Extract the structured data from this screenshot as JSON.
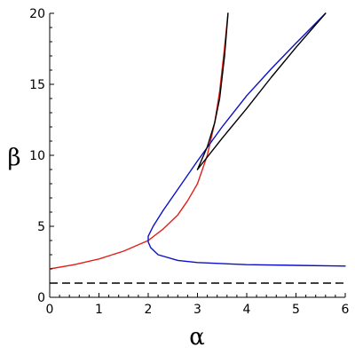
{
  "chart_data": {
    "type": "line",
    "xlabel": "α",
    "ylabel": "β",
    "xlim": [
      0,
      6
    ],
    "ylim": [
      0,
      20
    ],
    "xticks": [
      0,
      1,
      2,
      3,
      4,
      5,
      6
    ],
    "yticks": [
      0,
      5,
      10,
      15,
      20
    ],
    "grid": false,
    "series": [
      {
        "color": "#e0201b",
        "style": "solid",
        "points": [
          [
            0,
            2.0
          ],
          [
            0.5,
            2.3
          ],
          [
            1.0,
            2.7
          ],
          [
            1.5,
            3.25
          ],
          [
            2.0,
            4.0
          ],
          [
            2.3,
            4.8
          ],
          [
            2.6,
            5.8
          ],
          [
            2.8,
            6.8
          ],
          [
            3.0,
            8.0
          ],
          [
            3.2,
            10.0
          ],
          [
            3.35,
            12.3
          ],
          [
            3.45,
            14.5
          ],
          [
            3.55,
            17.6
          ],
          [
            3.62,
            20.0
          ]
        ]
      },
      {
        "color": "#0b10c8",
        "style": "solid",
        "points": [
          [
            5.6,
            20.0
          ],
          [
            5.0,
            17.9
          ],
          [
            4.5,
            16.1
          ],
          [
            4.0,
            14.2
          ],
          [
            3.5,
            12.0
          ],
          [
            3.0,
            9.6
          ],
          [
            2.6,
            7.6
          ],
          [
            2.3,
            6.1
          ],
          [
            2.1,
            5.0
          ],
          [
            2.0,
            4.3
          ],
          [
            2.0,
            3.9
          ],
          [
            2.05,
            3.5
          ],
          [
            2.2,
            3.0
          ],
          [
            2.6,
            2.6
          ],
          [
            3.0,
            2.45
          ],
          [
            4.0,
            2.3
          ],
          [
            5.0,
            2.25
          ],
          [
            6.0,
            2.2
          ]
        ]
      },
      {
        "color": "#000000",
        "style": "solid",
        "points": [
          [
            3.0,
            9.0
          ],
          [
            3.2,
            10.6
          ],
          [
            3.35,
            12.3
          ],
          [
            3.45,
            14.0
          ],
          [
            3.55,
            17.0
          ],
          [
            3.62,
            20.0
          ]
        ]
      },
      {
        "color": "#000000",
        "style": "solid",
        "points": [
          [
            3.0,
            9.0
          ],
          [
            3.5,
            11.2
          ],
          [
            4.0,
            13.3
          ],
          [
            4.5,
            15.5
          ],
          [
            5.0,
            17.6
          ],
          [
            5.6,
            20.0
          ]
        ]
      },
      {
        "color": "#000000",
        "style": "dashed",
        "points": [
          [
            0,
            1.0
          ],
          [
            6,
            1.0
          ]
        ]
      }
    ]
  }
}
